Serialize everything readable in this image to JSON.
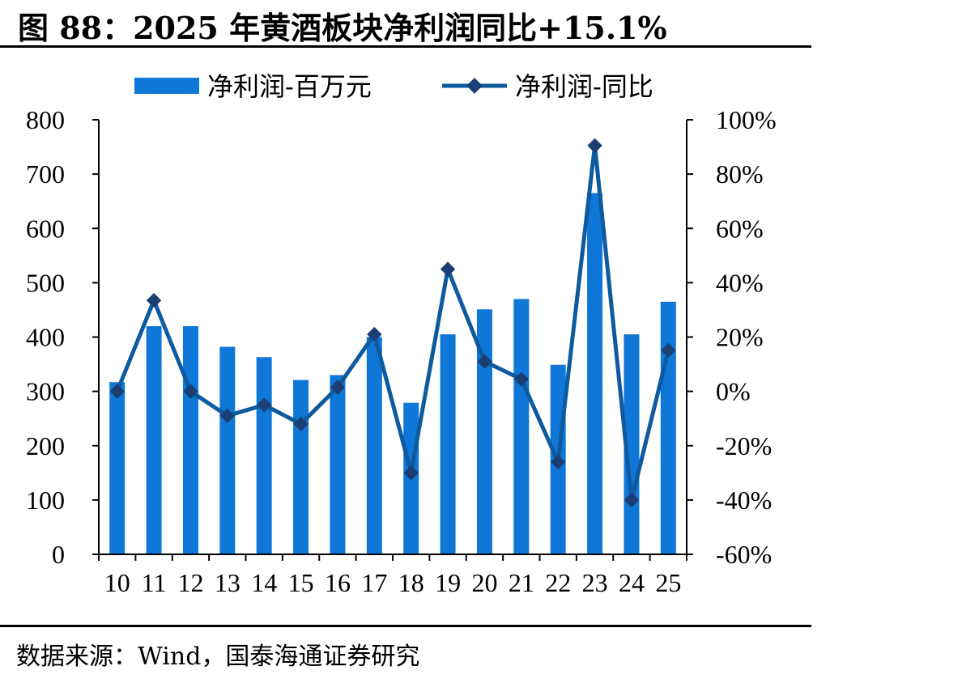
{
  "title": "图 88：2025 年黄酒板块净利润同比+15.1%",
  "source": "数据来源：Wind，国泰海通证券研究",
  "colors": {
    "bar": "#0f77d8",
    "line": "#0d5a9f",
    "marker": "#1b3f73"
  },
  "chart_data": {
    "type": "bar+line",
    "categories": [
      "10",
      "11",
      "12",
      "13",
      "14",
      "15",
      "16",
      "17",
      "18",
      "19",
      "20",
      "21",
      "22",
      "23",
      "24",
      "25"
    ],
    "series": [
      {
        "name": "净利润-百万元",
        "type": "bar",
        "axis": "left",
        "values": [
          317,
          420,
          420,
          382,
          363,
          321,
          330,
          400,
          279,
          405,
          451,
          470,
          349,
          665,
          405,
          465
        ]
      },
      {
        "name": "净利润-同比",
        "type": "line",
        "axis": "right",
        "values": [
          0,
          33.5,
          0,
          -9,
          -5,
          -12,
          1.5,
          21,
          -30,
          45,
          11,
          4.5,
          -26,
          90.5,
          -40,
          15.1
        ]
      }
    ],
    "y_left": {
      "min": 0,
      "max": 800,
      "ticks": [
        "0",
        "100",
        "200",
        "300",
        "400",
        "500",
        "600",
        "700",
        "800"
      ]
    },
    "y_right": {
      "min": -60,
      "max": 100,
      "ticks": [
        "-60%",
        "-40%",
        "-20%",
        "0%",
        "20%",
        "40%",
        "60%",
        "80%",
        "100%"
      ]
    },
    "legend_position": "top",
    "grid": false
  }
}
